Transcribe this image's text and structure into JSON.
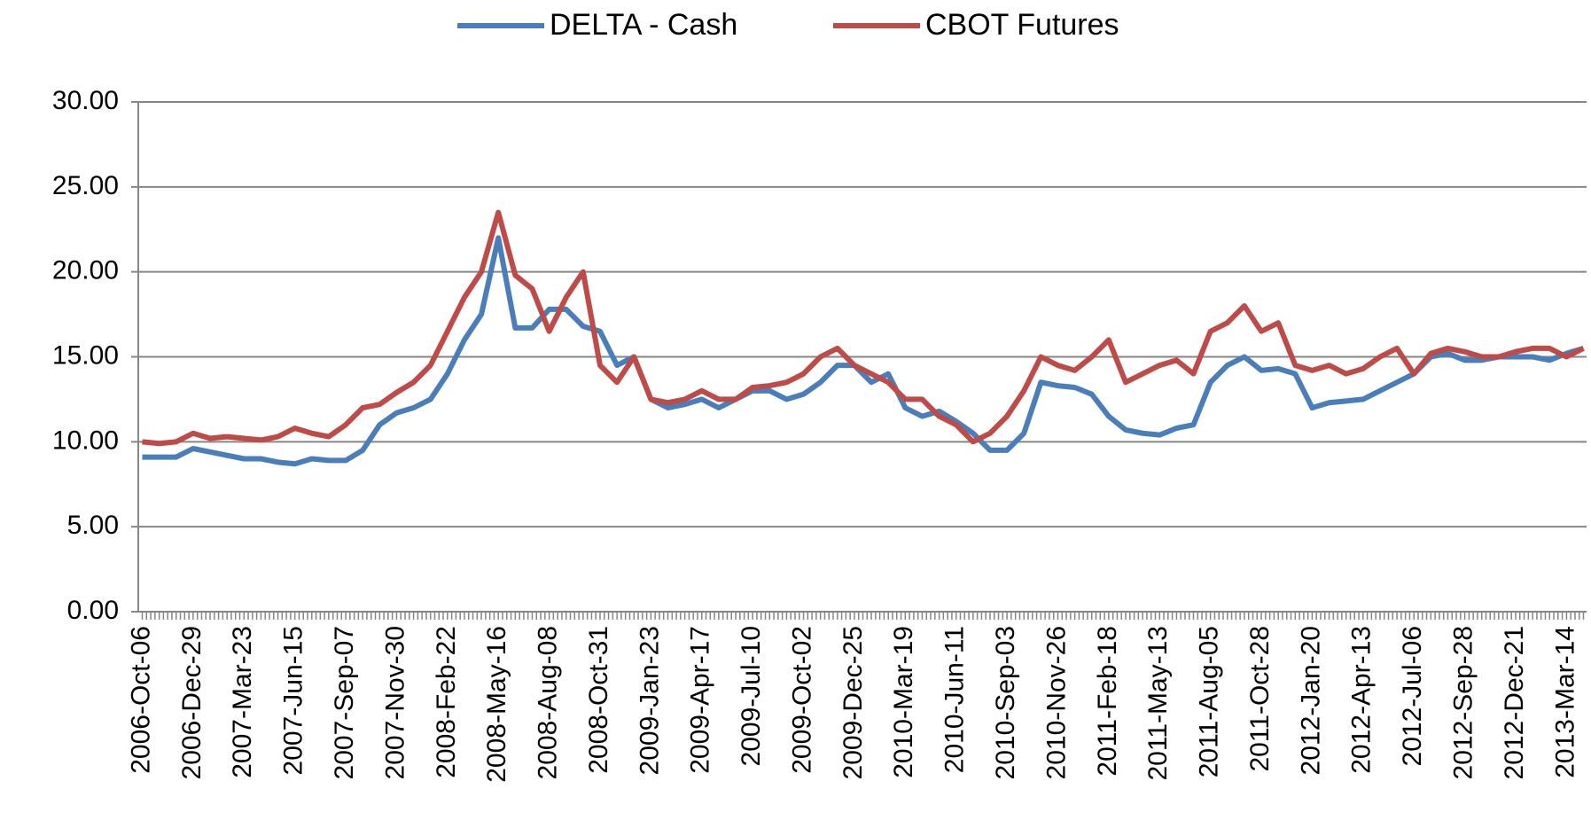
{
  "chart_data": {
    "type": "line",
    "categories": [
      "2006-Oct-06",
      null,
      null,
      "2006-Dec-29",
      null,
      null,
      "2007-Mar-23",
      null,
      null,
      "2007-Jun-15",
      null,
      null,
      "2007-Sep-07",
      null,
      null,
      "2007-Nov-30",
      null,
      null,
      "2008-Feb-22",
      null,
      null,
      "2008-May-16",
      null,
      null,
      "2008-Aug-08",
      null,
      null,
      "2008-Oct-31",
      null,
      null,
      "2009-Jan-23",
      null,
      null,
      "2009-Apr-17",
      null,
      null,
      "2009-Jul-10",
      null,
      null,
      "2009-Oct-02",
      null,
      null,
      "2009-Dec-25",
      null,
      null,
      "2010-Mar-19",
      null,
      null,
      "2010-Jun-11",
      null,
      null,
      "2010-Sep-03",
      null,
      null,
      "2010-Nov-26",
      null,
      null,
      "2011-Feb-18",
      null,
      null,
      "2011-May-13",
      null,
      null,
      "2011-Aug-05",
      null,
      null,
      "2011-Oct-28",
      null,
      null,
      "2012-Jan-20",
      null,
      null,
      "2012-Apr-13",
      null,
      null,
      "2012-Jul-06",
      null,
      null,
      "2012-Sep-28",
      null,
      null,
      "2012-Dec-21",
      null,
      null,
      "2013-Mar-14",
      null
    ],
    "series": [
      {
        "name": "DELTA - Cash",
        "color": "#4a7ebb",
        "values": [
          9.1,
          9.1,
          9.1,
          9.6,
          9.4,
          9.2,
          9.0,
          9.0,
          8.8,
          8.7,
          9.0,
          8.9,
          8.9,
          9.5,
          11.0,
          11.7,
          12.0,
          12.5,
          14.0,
          16.0,
          17.5,
          22.0,
          16.7,
          16.7,
          17.8,
          17.8,
          16.8,
          16.5,
          14.5,
          15.0,
          12.5,
          12.0,
          12.2,
          12.5,
          12.0,
          12.5,
          13.0,
          13.0,
          12.5,
          12.8,
          13.5,
          14.5,
          14.5,
          13.5,
          14.0,
          12.0,
          11.5,
          11.8,
          11.2,
          10.5,
          9.5,
          9.5,
          10.5,
          13.5,
          13.3,
          13.2,
          12.8,
          11.5,
          10.7,
          10.5,
          10.4,
          10.8,
          11.0,
          13.5,
          14.5,
          15.0,
          14.2,
          14.3,
          14.0,
          12.0,
          12.3,
          12.4,
          12.5,
          13.0,
          13.5,
          14.0,
          15.0,
          15.2,
          14.8,
          14.8,
          15.0,
          15.0,
          15.0,
          14.8,
          15.2,
          15.5
        ]
      },
      {
        "name": "CBOT Futures",
        "color": "#be4b48",
        "values": [
          10.0,
          9.9,
          10.0,
          10.5,
          10.2,
          10.3,
          10.2,
          10.1,
          10.3,
          10.8,
          10.5,
          10.3,
          11.0,
          12.0,
          12.2,
          12.9,
          13.5,
          14.5,
          16.5,
          18.5,
          20.0,
          23.5,
          19.8,
          19.0,
          16.5,
          18.5,
          20.0,
          14.5,
          13.5,
          15.0,
          12.5,
          12.3,
          12.5,
          13.0,
          12.5,
          12.5,
          13.2,
          13.3,
          13.5,
          14.0,
          15.0,
          15.5,
          14.5,
          14.0,
          13.5,
          12.5,
          12.5,
          11.5,
          11.0,
          10.0,
          10.5,
          11.5,
          13.0,
          15.0,
          14.5,
          14.2,
          15.0,
          16.0,
          13.5,
          14.0,
          14.5,
          14.8,
          14.0,
          16.5,
          17.0,
          18.0,
          16.5,
          17.0,
          14.5,
          14.2,
          14.5,
          14.0,
          14.3,
          15.0,
          15.5,
          14.0,
          15.2,
          15.5,
          15.3,
          15.0,
          15.0,
          15.3,
          15.5,
          15.5,
          15.0,
          15.5
        ]
      }
    ],
    "ylim": [
      0,
      30
    ],
    "yticks": [
      {
        "value": 0,
        "label": "0.00"
      },
      {
        "value": 5,
        "label": "5.00"
      },
      {
        "value": 10,
        "label": "10.00"
      },
      {
        "value": 15,
        "label": "15.00"
      },
      {
        "value": 20,
        "label": "20.00"
      },
      {
        "value": 25,
        "label": "25.00"
      },
      {
        "value": 30,
        "label": "30.00"
      }
    ],
    "grid": true,
    "legend": "top"
  }
}
